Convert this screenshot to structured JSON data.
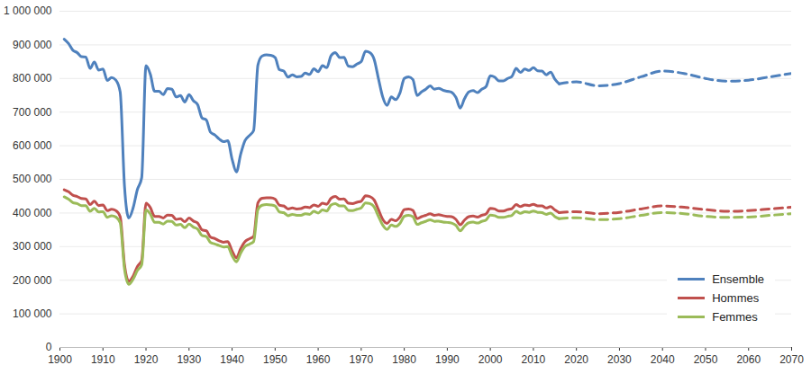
{
  "chart_data": {
    "type": "line",
    "xlim": [
      1900,
      2070
    ],
    "xticks": [
      1900,
      1910,
      1920,
      1930,
      1940,
      1950,
      1960,
      1970,
      1980,
      1990,
      2000,
      2010,
      2020,
      2030,
      2040,
      2050,
      2060,
      2070
    ],
    "ylim": [
      0,
      1000000
    ],
    "yticks": [
      0,
      {
        "value": 100000,
        "label": "100 000"
      },
      {
        "value": 200000,
        "label": "200 000"
      },
      {
        "value": 300000,
        "label": "300 000"
      },
      {
        "value": 400000,
        "label": "400 000"
      },
      {
        "value": 500000,
        "label": "500 000"
      },
      {
        "value": 600000,
        "label": "600 000"
      },
      {
        "value": 700000,
        "label": "700 000"
      },
      {
        "value": 800000,
        "label": "800 000"
      },
      {
        "value": 900000,
        "label": "900 000"
      },
      {
        "value": 1000000,
        "label": "1 000 000"
      }
    ],
    "grid": true,
    "legend": "lower right",
    "series": [
      {
        "name": "Ensemble",
        "color": "#4f81bd",
        "line_style": "solid",
        "x": [
          1901,
          1902,
          1903,
          1904,
          1905,
          1906,
          1907,
          1908,
          1909,
          1910,
          1911,
          1912,
          1913,
          1914,
          1915,
          1916,
          1917,
          1918,
          1919,
          1920,
          1921,
          1922,
          1923,
          1924,
          1925,
          1926,
          1927,
          1928,
          1929,
          1930,
          1931,
          1932,
          1933,
          1934,
          1935,
          1936,
          1937,
          1938,
          1939,
          1940,
          1941,
          1942,
          1943,
          1944,
          1945,
          1946,
          1947,
          1948,
          1949,
          1950,
          1951,
          1952,
          1953,
          1954,
          1955,
          1956,
          1957,
          1958,
          1959,
          1960,
          1961,
          1962,
          1963,
          1964,
          1965,
          1966,
          1967,
          1968,
          1969,
          1970,
          1971,
          1972,
          1973,
          1974,
          1975,
          1976,
          1977,
          1978,
          1979,
          1980,
          1981,
          1982,
          1983,
          1984,
          1985,
          1986,
          1987,
          1988,
          1989,
          1990,
          1991,
          1992,
          1993,
          1994,
          1995,
          1996,
          1997,
          1998,
          1999,
          2000,
          2001,
          2002,
          2003,
          2004,
          2005,
          2006,
          2007,
          2008,
          2009,
          2010,
          2011,
          2012,
          2013,
          2014,
          2015,
          2016
        ],
        "values": [
          917000,
          904000,
          884000,
          877000,
          865000,
          864000,
          830000,
          849000,
          825000,
          828000,
          794000,
          803000,
          795000,
          760000,
          480000,
          385000,
          415000,
          470000,
          505000,
          838000,
          813000,
          762000,
          762000,
          752000,
          770000,
          768000,
          745000,
          749000,
          730000,
          752000,
          734000,
          722000,
          683000,
          677000,
          640000,
          632000,
          620000,
          612000,
          615000,
          560000,
          522000,
          575000,
          615000,
          630000,
          645000,
          840000,
          867000,
          870000,
          869000,
          862000,
          826000,
          822000,
          804000,
          811000,
          805000,
          806000,
          816000,
          812000,
          829000,
          820000,
          838000,
          832000,
          868000,
          877000,
          862000,
          863000,
          837000,
          835000,
          843000,
          850000,
          881000,
          877000,
          857000,
          800000,
          745000,
          720000,
          745000,
          737000,
          757000,
          800000,
          805000,
          797000,
          749000,
          760000,
          768000,
          778000,
          768000,
          771000,
          765000,
          762000,
          759000,
          744000,
          712000,
          740000,
          760000,
          764000,
          758000,
          768000,
          776000,
          808000,
          804000,
          793000,
          793000,
          800000,
          806000,
          830000,
          818000,
          828000,
          824000,
          832000,
          823000,
          822000,
          811000,
          819000,
          798000,
          784000
        ]
      },
      {
        "name": "Hommes",
        "color": "#c0504d",
        "line_style": "solid",
        "x": [
          1901,
          1902,
          1903,
          1904,
          1905,
          1906,
          1907,
          1908,
          1909,
          1910,
          1911,
          1912,
          1913,
          1914,
          1915,
          1916,
          1917,
          1918,
          1919,
          1920,
          1921,
          1922,
          1923,
          1924,
          1925,
          1926,
          1927,
          1928,
          1929,
          1930,
          1931,
          1932,
          1933,
          1934,
          1935,
          1936,
          1937,
          1938,
          1939,
          1940,
          1941,
          1942,
          1943,
          1944,
          1945,
          1946,
          1947,
          1948,
          1949,
          1950,
          1951,
          1952,
          1953,
          1954,
          1955,
          1956,
          1957,
          1958,
          1959,
          1960,
          1961,
          1962,
          1963,
          1964,
          1965,
          1966,
          1967,
          1968,
          1969,
          1970,
          1971,
          1972,
          1973,
          1974,
          1975,
          1976,
          1977,
          1978,
          1979,
          1980,
          1981,
          1982,
          1983,
          1984,
          1985,
          1986,
          1987,
          1988,
          1989,
          1990,
          1991,
          1992,
          1993,
          1994,
          1995,
          1996,
          1997,
          1998,
          1999,
          2000,
          2001,
          2002,
          2003,
          2004,
          2005,
          2006,
          2007,
          2008,
          2009,
          2010,
          2011,
          2012,
          2013,
          2014,
          2015,
          2016
        ],
        "values": [
          469000,
          463000,
          453000,
          449000,
          443000,
          442000,
          425000,
          435000,
          422000,
          424000,
          407000,
          411000,
          407000,
          389000,
          246000,
          197000,
          212000,
          241000,
          259000,
          429000,
          416000,
          390000,
          390000,
          385000,
          394000,
          393000,
          381000,
          383000,
          374000,
          385000,
          376000,
          370000,
          350000,
          347000,
          328000,
          324000,
          317000,
          313000,
          315000,
          287000,
          267000,
          294000,
          315000,
          323000,
          330000,
          430000,
          444000,
          445000,
          445000,
          441000,
          423000,
          421000,
          412000,
          415000,
          412000,
          413000,
          418000,
          416000,
          424000,
          420000,
          429000,
          426000,
          444000,
          449000,
          441000,
          442000,
          429000,
          428000,
          432000,
          435000,
          451000,
          449000,
          439000,
          410000,
          381000,
          369000,
          381000,
          377000,
          388000,
          410000,
          412000,
          408000,
          383000,
          389000,
          393000,
          398000,
          393000,
          395000,
          392000,
          390000,
          389000,
          381000,
          365000,
          379000,
          389000,
          391000,
          388000,
          393000,
          397000,
          414000,
          412000,
          406000,
          406000,
          410000,
          413000,
          425000,
          419000,
          424000,
          422000,
          426000,
          421000,
          421000,
          415000,
          419000,
          409000,
          401000
        ]
      },
      {
        "name": "Femmes",
        "color": "#9bbb59",
        "line_style": "solid",
        "x": [
          1901,
          1902,
          1903,
          1904,
          1905,
          1906,
          1907,
          1908,
          1909,
          1910,
          1911,
          1912,
          1913,
          1914,
          1915,
          1916,
          1917,
          1918,
          1919,
          1920,
          1921,
          1922,
          1923,
          1924,
          1925,
          1926,
          1927,
          1928,
          1929,
          1930,
          1931,
          1932,
          1933,
          1934,
          1935,
          1936,
          1937,
          1938,
          1939,
          1940,
          1941,
          1942,
          1943,
          1944,
          1945,
          1946,
          1947,
          1948,
          1949,
          1950,
          1951,
          1952,
          1953,
          1954,
          1955,
          1956,
          1957,
          1958,
          1959,
          1960,
          1961,
          1962,
          1963,
          1964,
          1965,
          1966,
          1967,
          1968,
          1969,
          1970,
          1971,
          1972,
          1973,
          1974,
          1975,
          1976,
          1977,
          1978,
          1979,
          1980,
          1981,
          1982,
          1983,
          1984,
          1985,
          1986,
          1987,
          1988,
          1989,
          1990,
          1991,
          1992,
          1993,
          1994,
          1995,
          1996,
          1997,
          1998,
          1999,
          2000,
          2001,
          2002,
          2003,
          2004,
          2005,
          2006,
          2007,
          2008,
          2009,
          2010,
          2011,
          2012,
          2013,
          2014,
          2015,
          2016
        ],
        "values": [
          448000,
          441000,
          431000,
          428000,
          422000,
          422000,
          405000,
          414000,
          403000,
          404000,
          387000,
          392000,
          388000,
          371000,
          234000,
          188000,
          203000,
          229000,
          246000,
          409000,
          397000,
          372000,
          372000,
          367000,
          376000,
          375000,
          364000,
          366000,
          356000,
          367000,
          358000,
          352000,
          333000,
          330000,
          312000,
          308000,
          303000,
          299000,
          300000,
          273000,
          255000,
          281000,
          300000,
          307000,
          315000,
          410000,
          423000,
          425000,
          424000,
          421000,
          403000,
          401000,
          392000,
          396000,
          393000,
          393000,
          398000,
          396000,
          405000,
          400000,
          409000,
          406000,
          424000,
          428000,
          421000,
          421000,
          408000,
          407000,
          411000,
          415000,
          430000,
          428000,
          418000,
          390000,
          364000,
          351000,
          364000,
          360000,
          369000,
          390000,
          393000,
          389000,
          366000,
          371000,
          375000,
          380000,
          375000,
          376000,
          373000,
          372000,
          370000,
          363000,
          347000,
          361000,
          371000,
          373000,
          370000,
          375000,
          379000,
          394000,
          392000,
          387000,
          387000,
          390000,
          393000,
          405000,
          399000,
          404000,
          402000,
          406000,
          402000,
          401000,
          396000,
          400000,
          389000,
          383000
        ]
      },
      {
        "name": "Ensemble",
        "color": "#4f81bd",
        "line_style": "dashed",
        "x": [
          2016,
          2020,
          2025,
          2030,
          2035,
          2040,
          2045,
          2050,
          2055,
          2060,
          2065,
          2070
        ],
        "values": [
          784000,
          790000,
          778000,
          785000,
          805000,
          822000,
          815000,
          800000,
          792000,
          795000,
          805000,
          815000
        ]
      },
      {
        "name": "Hommes",
        "color": "#c0504d",
        "line_style": "dashed",
        "x": [
          2016,
          2020,
          2025,
          2030,
          2035,
          2040,
          2045,
          2050,
          2055,
          2060,
          2065,
          2070
        ],
        "values": [
          401000,
          404000,
          398000,
          402000,
          412000,
          421000,
          417000,
          410000,
          405000,
          407000,
          412000,
          417000
        ]
      },
      {
        "name": "Femmes",
        "color": "#9bbb59",
        "line_style": "dashed",
        "x": [
          2016,
          2020,
          2025,
          2030,
          2035,
          2040,
          2045,
          2050,
          2055,
          2060,
          2065,
          2070
        ],
        "values": [
          383000,
          386000,
          380000,
          383000,
          393000,
          401000,
          398000,
          390000,
          387000,
          388000,
          393000,
          398000
        ]
      }
    ]
  }
}
